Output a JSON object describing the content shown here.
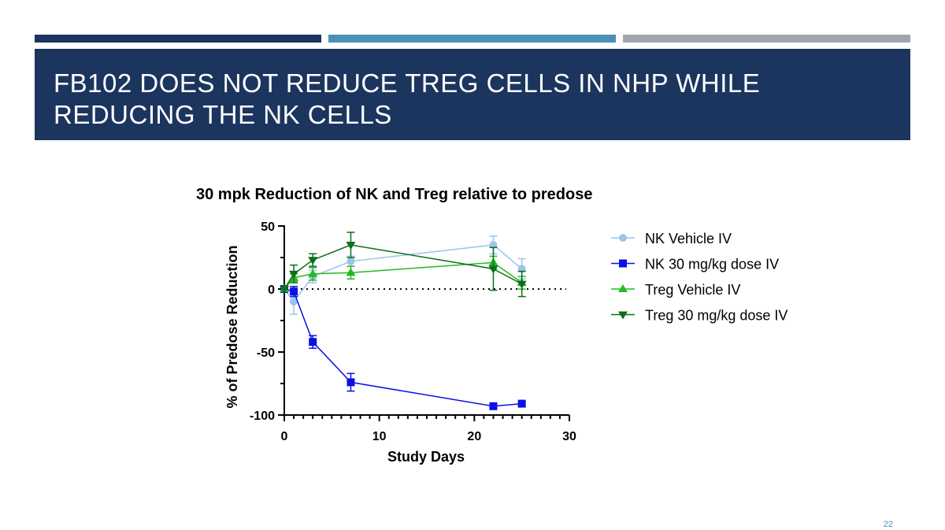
{
  "slide": {
    "title": "FB102 DOES NOT REDUCE TREG CELLS IN NHP WHILE REDUCING THE NK CELLS",
    "page_number": "22",
    "colors": {
      "navy": "#1c355e",
      "blue": "#4a90b8",
      "gray": "#a0a5ad"
    }
  },
  "chart_data": {
    "type": "line",
    "title": "30 mpk Reduction of NK and Treg relative to predose",
    "xlabel": "Study Days",
    "ylabel": "% of Predose Reduction",
    "xlim": [
      0,
      30
    ],
    "ylim": [
      -100,
      50
    ],
    "xticks": [
      0,
      10,
      20,
      30
    ],
    "yticks": [
      50,
      0,
      -50,
      -100
    ],
    "reference_line_y": 0,
    "legend_position": "right",
    "series": [
      {
        "name": "NK Vehicle IV",
        "marker": "circle",
        "color": "#9cc3ea",
        "x": [
          0,
          1,
          3,
          7,
          22,
          25
        ],
        "y": [
          0,
          -10,
          10,
          22,
          35,
          16
        ],
        "err": [
          0,
          10,
          5,
          4,
          7,
          8
        ]
      },
      {
        "name": "NK 30 mg/kg dose IV",
        "marker": "square",
        "color": "#0a10e6",
        "x": [
          0,
          1,
          3,
          7,
          22,
          25
        ],
        "y": [
          0,
          -2,
          -42,
          -74,
          -93,
          -91
        ],
        "err": [
          0,
          4,
          5,
          7,
          0,
          0
        ]
      },
      {
        "name": "Treg Vehicle IV",
        "marker": "triangle-up",
        "color": "#22bb22",
        "x": [
          0,
          1,
          3,
          7,
          22,
          25
        ],
        "y": [
          0,
          9,
          12,
          13,
          21,
          5
        ],
        "err": [
          0,
          3,
          5,
          5,
          5,
          5
        ]
      },
      {
        "name": "Treg 30 mg/kg dose IV",
        "marker": "triangle-down",
        "color": "#0d6e1c",
        "x": [
          0,
          1,
          3,
          7,
          22,
          25
        ],
        "y": [
          0,
          12,
          23,
          35,
          16,
          4
        ],
        "err": [
          0,
          7,
          5,
          10,
          17,
          10
        ]
      }
    ]
  }
}
